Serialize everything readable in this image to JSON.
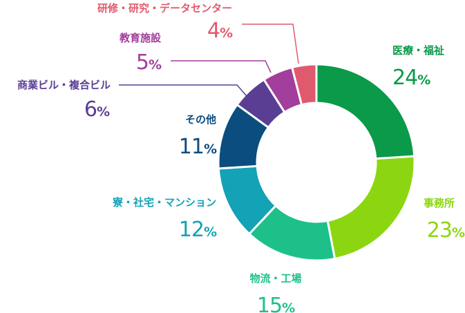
{
  "chart_data": {
    "type": "pie",
    "title": "",
    "unit": "%",
    "categories": [
      "医療・福祉",
      "事務所",
      "物流・工場",
      "寮・社宅・マンション",
      "その他",
      "商業ビル・複合ビル",
      "教育施設",
      "研修・研究・データセンター"
    ],
    "values": [
      24,
      23,
      15,
      12,
      11,
      6,
      5,
      4
    ],
    "colors": [
      "#0a9a49",
      "#8cd611",
      "#1ec08a",
      "#13a2b6",
      "#0c4d80",
      "#5a3e93",
      "#a23e9c",
      "#e05a6e"
    ]
  }
}
